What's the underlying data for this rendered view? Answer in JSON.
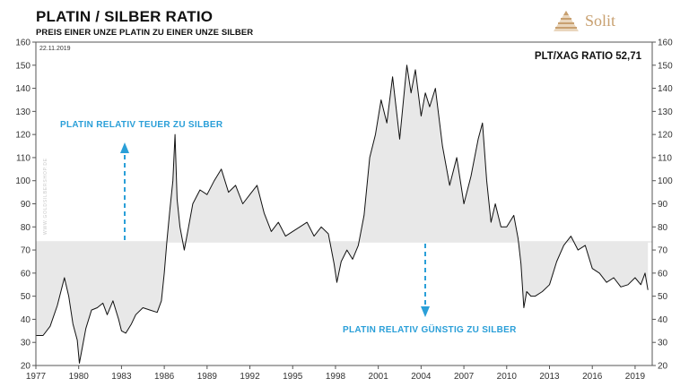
{
  "header": {
    "title": "PLATIN / SILBER RATIO",
    "subtitle": "PREIS EINER UNZE PLATIN ZU EINER UNZE SILBER"
  },
  "brand": {
    "name": "Solit",
    "color": "#c8a070"
  },
  "chart_data": {
    "type": "line",
    "date_label": "22.11.2019",
    "ratio_label": "PLT/XAG RATIO 52,71",
    "xlim": [
      1977,
      2020.2
    ],
    "ylim": [
      20,
      160
    ],
    "y_ticks": [
      20,
      30,
      40,
      50,
      60,
      70,
      80,
      90,
      100,
      110,
      120,
      130,
      140,
      150,
      160
    ],
    "x_ticks": [
      1977,
      1980,
      1983,
      1986,
      1989,
      1992,
      1995,
      1998,
      2001,
      2004,
      2007,
      2010,
      2013,
      2016,
      2019
    ],
    "grid": false,
    "band": {
      "from": 73.5,
      "to": 73.5
    },
    "colors": {
      "line": "#111111",
      "fill": "#e8e8e8",
      "annotation": "#2a9fd8"
    },
    "annotations": [
      {
        "text": "PLATIN RELATIV TEUER ZU SILBER",
        "direction": "up"
      },
      {
        "text": "PLATIN RELATIV GÜNSTIG ZU SILBER",
        "direction": "down"
      }
    ],
    "watermark": "WWW.GOLDSILBERSHOP.DE",
    "series": [
      {
        "x": [
          1977.0,
          1977.5,
          1978.0,
          1978.5,
          1979.0,
          1979.3,
          1979.6,
          1979.9,
          1980.05,
          1980.2,
          1980.5,
          1980.9,
          1981.3,
          1981.7,
          1982.0,
          1982.4,
          1982.8,
          1983.0,
          1983.3,
          1983.7,
          1984.0,
          1984.5,
          1985.0,
          1985.5,
          1985.8,
          1986.0,
          1986.2,
          1986.4,
          1986.6,
          1986.75,
          1986.9,
          1987.1,
          1987.4,
          1987.7,
          1988.0,
          1988.5,
          1989.0,
          1989.5,
          1990.0,
          1990.5,
          1991.0,
          1991.5,
          1992.0,
          1992.5,
          1993.0,
          1993.5,
          1994.0,
          1994.5,
          1995.0,
          1995.5,
          1996.0,
          1996.5,
          1997.0,
          1997.5,
          1997.9,
          1998.1,
          1998.4,
          1998.8,
          1999.2,
          1999.6,
          2000.0,
          2000.4,
          2000.8,
          2001.2,
          2001.6,
          2002.0,
          2002.5,
          2003.0,
          2003.3,
          2003.6,
          2004.0,
          2004.3,
          2004.6,
          2005.0,
          2005.5,
          2006.0,
          2006.5,
          2007.0,
          2007.5,
          2008.0,
          2008.3,
          2008.6,
          2008.9,
          2009.2,
          2009.6,
          2010.0,
          2010.5,
          2010.8,
          2011.0,
          2011.2,
          2011.4,
          2011.7,
          2012.0,
          2012.5,
          2013.0,
          2013.5,
          2014.0,
          2014.5,
          2015.0,
          2015.5,
          2016.0,
          2016.5,
          2017.0,
          2017.5,
          2018.0,
          2018.5,
          2019.0,
          2019.4,
          2019.7,
          2019.9
        ],
        "y": [
          33,
          33,
          37,
          46,
          58,
          50,
          38,
          31,
          21,
          26,
          36,
          44,
          45,
          47,
          42,
          48,
          40,
          35,
          34,
          38,
          42,
          45,
          44,
          43,
          48,
          60,
          75,
          88,
          100,
          120,
          92,
          80,
          70,
          80,
          90,
          96,
          94,
          100,
          105,
          95,
          98,
          90,
          94,
          98,
          86,
          78,
          82,
          76,
          78,
          80,
          82,
          76,
          80,
          77,
          64,
          56,
          65,
          70,
          66,
          72,
          85,
          110,
          120,
          135,
          125,
          145,
          118,
          150,
          138,
          148,
          128,
          138,
          132,
          140,
          115,
          98,
          110,
          90,
          102,
          118,
          125,
          100,
          82,
          90,
          80,
          80,
          85,
          75,
          64,
          45,
          52,
          50,
          50,
          52,
          55,
          65,
          72,
          76,
          70,
          72,
          62,
          60,
          56,
          58,
          54,
          55,
          58,
          55,
          60,
          52.71
        ]
      }
    ]
  }
}
